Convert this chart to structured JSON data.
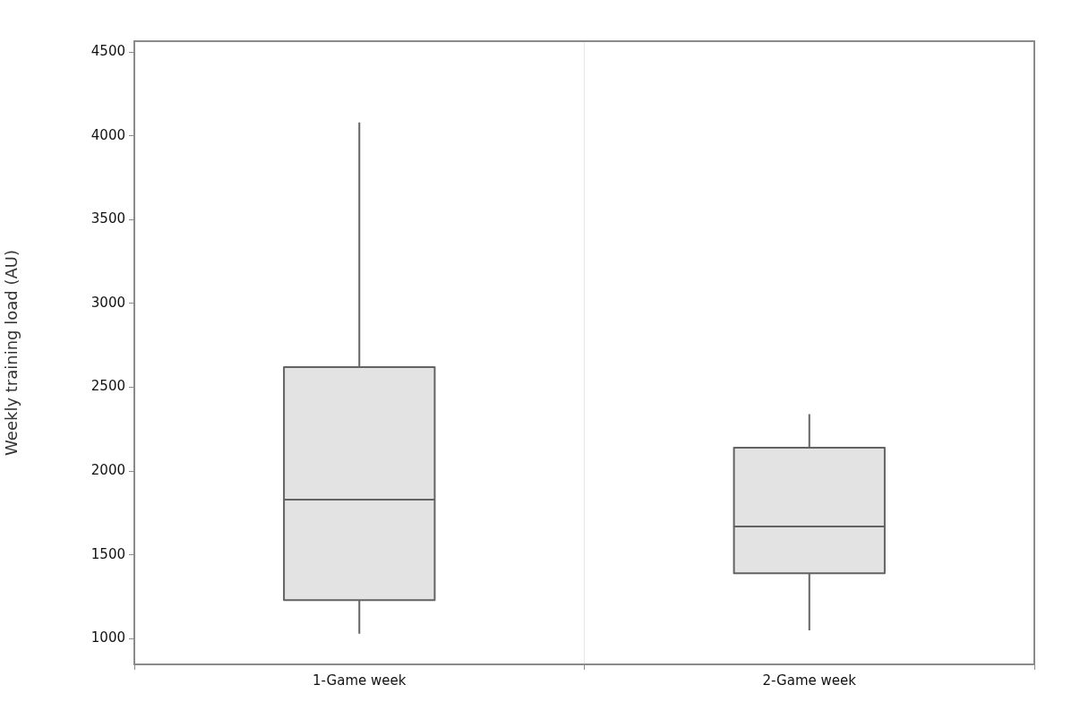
{
  "chart_data": {
    "type": "box",
    "ylabel": "Weekly training load (AU)",
    "categories": [
      "1-Game week",
      "2-Game week"
    ],
    "series": [
      {
        "color": "#e3e3e3",
        "boxes": [
          {
            "low": 1030,
            "q1": 1230,
            "median": 1830,
            "q3": 2620,
            "high": 4080
          },
          {
            "low": 1050,
            "q1": 1390,
            "median": 1670,
            "q3": 2140,
            "high": 2340
          }
        ]
      }
    ],
    "ylim": [
      847,
      4565
    ],
    "yticks": [
      1000,
      1500,
      2000,
      2500,
      3000,
      3500,
      4000,
      4500
    ],
    "grid": "x",
    "legend": false
  }
}
